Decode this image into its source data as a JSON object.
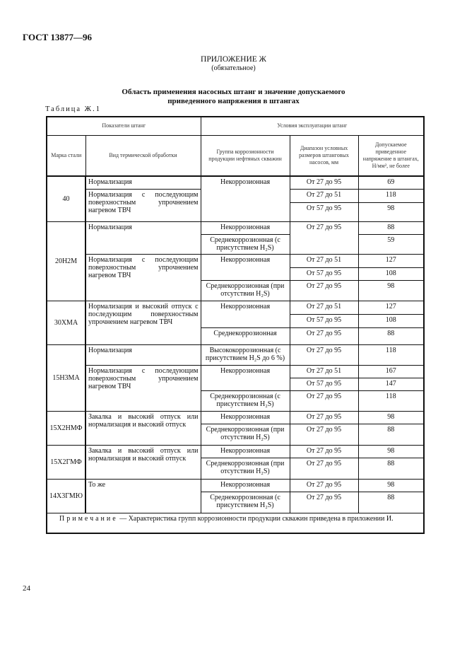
{
  "header": {
    "doc_code": "ГОСТ 13877—96"
  },
  "appendix": {
    "title": "ПРИЛОЖЕНИЕ Ж",
    "subtitle": "(обязательное)"
  },
  "table_title": {
    "line1": "Область применения насосных штанг и значение допускаемого",
    "line2": "приведенного напряжения в штангах"
  },
  "table_label": "Таблица Ж.1",
  "columns": {
    "group1": "Показатели штанг",
    "group2": "Условия эксплуатации штанг",
    "grade": "Марка стали",
    "treatment": "Вид термической обработки",
    "corrosion": "Группа коррозионности продукции нефтяных скважин",
    "range": "Диапазон условных размеров штанговых насосов, мм",
    "stress": "Допускаемое приведенное напряжение в штангах, Н/мм², не более"
  },
  "rows": [
    [
      {
        "t": "40",
        "rs": 3,
        "k": "grade"
      },
      {
        "t": "Нормализация",
        "k": "treat"
      },
      {
        "t": "Некоррозионная",
        "rs": 3,
        "k": "c"
      },
      {
        "t": "От 27 до 95",
        "k": "c"
      },
      {
        "t": "69",
        "k": "c"
      }
    ],
    [
      {
        "t": "Нормализация с последующим поверхностным упрочнением нагревом ТВЧ",
        "rs": 2,
        "k": "treat"
      },
      {
        "t": "От 27 до 51",
        "k": "c"
      },
      {
        "t": "118",
        "k": "c"
      }
    ],
    [
      {
        "t": "От 57 до 95",
        "k": "c"
      },
      {
        "t": "98",
        "k": "c"
      }
    ],
    [
      {
        "t": "20Н2М",
        "rs": 5,
        "k": "grade"
      },
      {
        "t": "Нормализация",
        "rs": 2,
        "k": "treat"
      },
      {
        "t": "Некоррозионная",
        "k": "c"
      },
      {
        "t": "От 27 до 95",
        "rs": 2,
        "k": "c"
      },
      {
        "t": "88",
        "k": "c"
      }
    ],
    [
      {
        "t": "Среднекоррозионная (с присутствием H₂S)",
        "k": "c"
      },
      {
        "t": "59",
        "k": "c"
      }
    ],
    [
      {
        "t": "Нормализация с последующим поверхностным упрочнением нагревом ТВЧ",
        "rs": 3,
        "k": "treat"
      },
      {
        "t": "Некоррозионная",
        "rs": 2,
        "k": "c"
      },
      {
        "t": "От 27 до 51",
        "k": "c"
      },
      {
        "t": "127",
        "k": "c"
      }
    ],
    [
      {
        "t": "От 57 до 95",
        "k": "c"
      },
      {
        "t": "108",
        "k": "c"
      }
    ],
    [
      {
        "t": "Среднекоррозионная (при отсутствии H₂S)",
        "k": "c"
      },
      {
        "t": "От 27 до 95",
        "k": "c"
      },
      {
        "t": "98",
        "k": "c"
      }
    ],
    [
      {
        "t": "30ХМА",
        "rs": 3,
        "k": "grade"
      },
      {
        "t": "Нормализация и высокий отпуск с последующим поверхностным упрочнением нагревом ТВЧ",
        "rs": 3,
        "k": "treat"
      },
      {
        "t": "Некоррозионная",
        "rs": 2,
        "k": "c"
      },
      {
        "t": "От 27 до 51",
        "k": "c"
      },
      {
        "t": "127",
        "k": "c"
      }
    ],
    [
      {
        "t": "От 57 до 95",
        "k": "c"
      },
      {
        "t": "108",
        "k": "c"
      }
    ],
    [
      {
        "t": "Среднекоррозионная",
        "k": "c"
      },
      {
        "t": "От 27 до 95",
        "k": "c"
      },
      {
        "t": "88",
        "k": "c"
      }
    ],
    [
      {
        "t": "15Н3МА",
        "rs": 4,
        "k": "grade"
      },
      {
        "t": "Нормализация",
        "k": "treat"
      },
      {
        "t": "Высококоррозионная (с присутствием H₂S до 6 %)",
        "k": "c"
      },
      {
        "t": "От 27 до 95",
        "k": "c"
      },
      {
        "t": "118",
        "k": "c"
      }
    ],
    [
      {
        "t": "Нормализация с последующим поверхностным упрочнением нагревом ТВЧ",
        "rs": 3,
        "k": "treat"
      },
      {
        "t": "Некоррозионная",
        "rs": 2,
        "k": "c"
      },
      {
        "t": "От 27 до 51",
        "k": "c"
      },
      {
        "t": "167",
        "k": "c"
      }
    ],
    [
      {
        "t": "От 57 до 95",
        "k": "c"
      },
      {
        "t": "147",
        "k": "c"
      }
    ],
    [
      {
        "t": "Среднекоррозионная (с присутствием H₂S)",
        "k": "c"
      },
      {
        "t": "От 27 до 95",
        "k": "c"
      },
      {
        "t": "118",
        "k": "c"
      }
    ],
    [
      {
        "t": "15Х2НМФ",
        "rs": 2,
        "k": "grade"
      },
      {
        "t": "Закалка и высокий отпуск или нормализация и высокий отпуск",
        "rs": 2,
        "k": "treat"
      },
      {
        "t": "Некоррозионная",
        "k": "c"
      },
      {
        "t": "От 27 до 95",
        "k": "c"
      },
      {
        "t": "98",
        "k": "c"
      }
    ],
    [
      {
        "t": "Среднекоррозионная (при отсутствии H₂S)",
        "k": "c"
      },
      {
        "t": "От 27 до 95",
        "k": "c"
      },
      {
        "t": "88",
        "k": "c"
      }
    ],
    [
      {
        "t": "15Х2ГМФ",
        "rs": 2,
        "k": "grade"
      },
      {
        "t": "Закалка и высокий отпуск или нормализация и высокий отпуск",
        "rs": 2,
        "k": "treat"
      },
      {
        "t": "Некоррозионная",
        "k": "c"
      },
      {
        "t": "От 27 до 95",
        "k": "c"
      },
      {
        "t": "98",
        "k": "c"
      }
    ],
    [
      {
        "t": "Среднекоррозионная (при отсутствии H₂S)",
        "k": "c"
      },
      {
        "t": "От 27 до 95",
        "k": "c"
      },
      {
        "t": "88",
        "k": "c"
      }
    ],
    [
      {
        "t": "14Х3ГМЮ",
        "rs": 2,
        "k": "grade"
      },
      {
        "t": "То же",
        "rs": 2,
        "k": "treat"
      },
      {
        "t": "Некоррозионная",
        "k": "c"
      },
      {
        "t": "От 27 до 95",
        "k": "c"
      },
      {
        "t": "98",
        "k": "c"
      }
    ],
    [
      {
        "t": "Среднекоррозионная (с присутствием H₂S)",
        "k": "c"
      },
      {
        "t": "От 27 до 95",
        "k": "c"
      },
      {
        "t": "88",
        "k": "c"
      }
    ]
  ],
  "note": {
    "label": "Примечание",
    "text": " — Характеристика групп коррозионности продукции скважин приведена в приложении И."
  },
  "page_number": "24"
}
